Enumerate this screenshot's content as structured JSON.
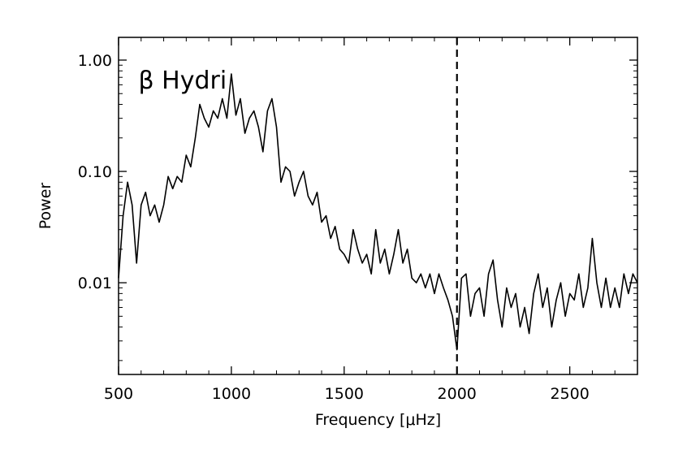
{
  "chart_data": {
    "type": "line",
    "xlabel": "Frequency [μHz]",
    "ylabel": "Power",
    "xlim": [
      500,
      2800
    ],
    "ylim": [
      0.0015,
      1.6
    ],
    "yscale": "log",
    "grid": false,
    "annotation": {
      "text": "β Hydri",
      "x": 750,
      "y": 0.75
    },
    "vline": {
      "x": 2000,
      "style": "dashed"
    },
    "x_ticks": [
      500,
      1000,
      1500,
      2000,
      2500
    ],
    "x_tick_labels": [
      "500",
      "1000",
      "1500",
      "2000",
      "2500"
    ],
    "y_ticks": [
      1.0,
      0.1,
      0.01
    ],
    "y_tick_labels": [
      "1.00",
      "0.10",
      "0.01"
    ],
    "series": [
      {
        "color": "#000000",
        "x": [
          500,
          520,
          540,
          560,
          580,
          600,
          620,
          640,
          660,
          680,
          700,
          720,
          740,
          760,
          780,
          800,
          820,
          840,
          860,
          880,
          900,
          920,
          940,
          960,
          980,
          1000,
          1020,
          1040,
          1060,
          1080,
          1100,
          1120,
          1140,
          1160,
          1180,
          1200,
          1220,
          1240,
          1260,
          1280,
          1300,
          1320,
          1340,
          1360,
          1380,
          1400,
          1420,
          1440,
          1460,
          1480,
          1500,
          1520,
          1540,
          1560,
          1580,
          1600,
          1620,
          1640,
          1660,
          1680,
          1700,
          1720,
          1740,
          1760,
          1780,
          1800,
          1820,
          1840,
          1860,
          1880,
          1900,
          1920,
          1940,
          1960,
          1980,
          2000,
          2020,
          2040,
          2060,
          2080,
          2100,
          2120,
          2140,
          2160,
          2180,
          2200,
          2220,
          2240,
          2260,
          2280,
          2300,
          2320,
          2340,
          2360,
          2380,
          2400,
          2420,
          2440,
          2460,
          2480,
          2500,
          2520,
          2540,
          2560,
          2580,
          2600,
          2620,
          2640,
          2660,
          2680,
          2700,
          2720,
          2740,
          2760,
          2780,
          2800
        ],
        "y": [
          0.011,
          0.04,
          0.08,
          0.05,
          0.015,
          0.05,
          0.065,
          0.04,
          0.05,
          0.035,
          0.05,
          0.09,
          0.07,
          0.09,
          0.08,
          0.14,
          0.11,
          0.2,
          0.4,
          0.3,
          0.25,
          0.35,
          0.3,
          0.45,
          0.3,
          0.75,
          0.32,
          0.45,
          0.22,
          0.3,
          0.35,
          0.25,
          0.15,
          0.35,
          0.45,
          0.25,
          0.08,
          0.11,
          0.1,
          0.06,
          0.08,
          0.1,
          0.06,
          0.05,
          0.065,
          0.035,
          0.04,
          0.025,
          0.032,
          0.02,
          0.018,
          0.015,
          0.03,
          0.02,
          0.015,
          0.018,
          0.012,
          0.03,
          0.015,
          0.02,
          0.012,
          0.018,
          0.03,
          0.015,
          0.02,
          0.011,
          0.01,
          0.012,
          0.009,
          0.012,
          0.008,
          0.012,
          0.009,
          0.007,
          0.005,
          0.0025,
          0.011,
          0.012,
          0.005,
          0.008,
          0.009,
          0.005,
          0.012,
          0.016,
          0.007,
          0.004,
          0.009,
          0.006,
          0.008,
          0.004,
          0.006,
          0.0035,
          0.008,
          0.012,
          0.006,
          0.009,
          0.004,
          0.007,
          0.01,
          0.005,
          0.008,
          0.007,
          0.012,
          0.006,
          0.009,
          0.025,
          0.01,
          0.006,
          0.011,
          0.006,
          0.009,
          0.006,
          0.012,
          0.008,
          0.012,
          0.01
        ]
      }
    ]
  }
}
